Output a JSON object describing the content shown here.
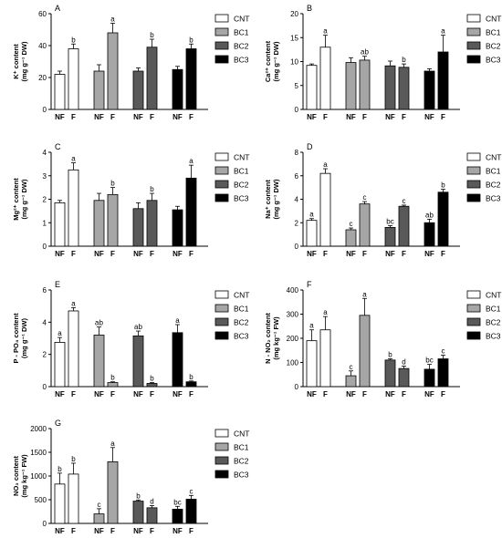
{
  "legend": {
    "colors": {
      "CNT": "#ffffff",
      "BC1": "#a6a6a6",
      "BC2": "#595959",
      "BC3": "#000000"
    }
  },
  "chart_data": [
    {
      "type": "bar",
      "panel_label": "A",
      "ylabel_lines": [
        "K⁺ content",
        "(mg g⁻¹ DW)"
      ],
      "ylim": [
        0,
        60
      ],
      "yticks": [
        0,
        20,
        40,
        60
      ],
      "groups": [
        "CNT",
        "BC1",
        "BC2",
        "BC3"
      ],
      "categories": [
        "NF",
        "F"
      ],
      "legend_labels": [
        "CNT",
        "BC1",
        "BC2",
        "BC3"
      ],
      "series": [
        {
          "group": "CNT",
          "values": [
            22,
            38
          ],
          "errors": [
            2,
            3
          ],
          "letters": [
            "",
            "b"
          ]
        },
        {
          "group": "BC1",
          "values": [
            24,
            48
          ],
          "errors": [
            4,
            6
          ],
          "letters": [
            "",
            "a"
          ]
        },
        {
          "group": "BC2",
          "values": [
            24,
            39
          ],
          "errors": [
            2,
            5
          ],
          "letters": [
            "",
            "b"
          ]
        },
        {
          "group": "BC3",
          "values": [
            25,
            38
          ],
          "errors": [
            2,
            3
          ],
          "letters": [
            "",
            "b"
          ]
        }
      ]
    },
    {
      "type": "bar",
      "panel_label": "B",
      "ylabel_lines": [
        "Ca²⁺ content",
        "(mg g⁻¹ DW)"
      ],
      "ylim": [
        0,
        20
      ],
      "yticks": [
        0,
        5,
        10,
        15,
        20
      ],
      "groups": [
        "CNT",
        "BC1",
        "BC2",
        "BC3"
      ],
      "categories": [
        "NF",
        "F"
      ],
      "legend_labels": [
        "CNT",
        "BC1",
        "BC2",
        "BC3"
      ],
      "series": [
        {
          "group": "CNT",
          "values": [
            9.2,
            13
          ],
          "errors": [
            0.3,
            2.5
          ],
          "letters": [
            "",
            "a"
          ]
        },
        {
          "group": "BC1",
          "values": [
            9.8,
            10.3
          ],
          "errors": [
            1,
            0.8
          ],
          "letters": [
            "",
            "ab"
          ]
        },
        {
          "group": "BC2",
          "values": [
            9.1,
            8.8
          ],
          "errors": [
            1,
            0.7
          ],
          "letters": [
            "",
            "b"
          ]
        },
        {
          "group": "BC3",
          "values": [
            8,
            12
          ],
          "errors": [
            0.5,
            3.5
          ],
          "letters": [
            "",
            "a"
          ]
        }
      ]
    },
    {
      "type": "bar",
      "panel_label": "C",
      "ylabel_lines": [
        "Mg²⁺ content",
        "(mg g⁻¹ DW)"
      ],
      "ylim": [
        0,
        4
      ],
      "yticks": [
        0,
        1,
        2,
        3,
        4
      ],
      "groups": [
        "CNT",
        "BC1",
        "BC2",
        "BC3"
      ],
      "categories": [
        "NF",
        "F"
      ],
      "legend_labels": [
        "CNT",
        "BC1",
        "BC2",
        "BC3"
      ],
      "series": [
        {
          "group": "CNT",
          "values": [
            1.85,
            3.25
          ],
          "errors": [
            0.1,
            0.3
          ],
          "letters": [
            "",
            "a"
          ]
        },
        {
          "group": "BC1",
          "values": [
            1.95,
            2.2
          ],
          "errors": [
            0.3,
            0.3
          ],
          "letters": [
            "",
            "b"
          ]
        },
        {
          "group": "BC2",
          "values": [
            1.6,
            1.95
          ],
          "errors": [
            0.25,
            0.3
          ],
          "letters": [
            "",
            "b"
          ]
        },
        {
          "group": "BC3",
          "values": [
            1.55,
            2.9
          ],
          "errors": [
            0.15,
            0.55
          ],
          "letters": [
            "",
            "a"
          ]
        }
      ]
    },
    {
      "type": "bar",
      "panel_label": "D",
      "ylabel_lines": [
        "Na⁺ content",
        "(mg g⁻¹ DW)"
      ],
      "ylim": [
        0,
        8
      ],
      "yticks": [
        0,
        2,
        4,
        6,
        8
      ],
      "groups": [
        "CNT",
        "BC1",
        "BC2",
        "BC3"
      ],
      "categories": [
        "NF",
        "F"
      ],
      "legend_labels": [
        "CNT",
        "BC1",
        "BC2",
        "BC3"
      ],
      "series": [
        {
          "group": "CNT",
          "values": [
            2.2,
            6.2
          ],
          "errors": [
            0.15,
            0.4
          ],
          "letters": [
            "a",
            "a"
          ]
        },
        {
          "group": "BC1",
          "values": [
            1.4,
            3.6
          ],
          "errors": [
            0.15,
            0.2
          ],
          "letters": [
            "c",
            "c"
          ]
        },
        {
          "group": "BC2",
          "values": [
            1.6,
            3.4
          ],
          "errors": [
            0.15,
            0.1
          ],
          "letters": [
            "bc",
            "c"
          ]
        },
        {
          "group": "BC3",
          "values": [
            2.0,
            4.6
          ],
          "errors": [
            0.3,
            0.25
          ],
          "letters": [
            "ab",
            "b"
          ]
        }
      ]
    },
    {
      "type": "bar",
      "panel_label": "E",
      "ylabel_lines": [
        "P - PO₄ content",
        "(mg g⁻¹ DW)"
      ],
      "ylim": [
        0,
        6
      ],
      "yticks": [
        0,
        2,
        4,
        6
      ],
      "groups": [
        "CNT",
        "BC1",
        "BC2",
        "BC3"
      ],
      "categories": [
        "NF",
        "F"
      ],
      "legend_labels": [
        "CNT",
        "BC1",
        "BC2",
        "BC3"
      ],
      "series": [
        {
          "group": "CNT",
          "values": [
            2.75,
            4.7
          ],
          "errors": [
            0.3,
            0.2
          ],
          "letters": [
            "a",
            "a"
          ]
        },
        {
          "group": "BC1",
          "values": [
            3.2,
            0.25
          ],
          "errors": [
            0.5,
            0.05
          ],
          "letters": [
            "ab",
            "b"
          ]
        },
        {
          "group": "BC2",
          "values": [
            3.15,
            0.2
          ],
          "errors": [
            0.3,
            0.05
          ],
          "letters": [
            "ab",
            "b"
          ]
        },
        {
          "group": "BC3",
          "values": [
            3.35,
            0.3
          ],
          "errors": [
            0.5,
            0.05
          ],
          "letters": [
            "a",
            "b"
          ]
        }
      ]
    },
    {
      "type": "bar",
      "panel_label": "F",
      "ylabel_lines": [
        "N - NO₂ content",
        "(mg kg⁻¹ FW)"
      ],
      "ylim": [
        0,
        400
      ],
      "yticks": [
        0,
        100,
        200,
        300,
        400
      ],
      "groups": [
        "CNT",
        "BC1",
        "BC2",
        "BC3"
      ],
      "categories": [
        "NF",
        "F"
      ],
      "legend_labels": [
        "CNT",
        "BC1",
        "BC2",
        "BC3"
      ],
      "series": [
        {
          "group": "CNT",
          "values": [
            190,
            235
          ],
          "errors": [
            45,
            55
          ],
          "letters": [
            "a",
            "a"
          ]
        },
        {
          "group": "BC1",
          "values": [
            45,
            295
          ],
          "errors": [
            20,
            70
          ],
          "letters": [
            "c",
            "a"
          ]
        },
        {
          "group": "BC2",
          "values": [
            110,
            75
          ],
          "errors": [
            5,
            10
          ],
          "letters": [
            "b",
            "d"
          ]
        },
        {
          "group": "BC3",
          "values": [
            72,
            115
          ],
          "errors": [
            20,
            15
          ],
          "letters": [
            "bc",
            "c"
          ]
        }
      ]
    },
    {
      "type": "bar",
      "panel_label": "G",
      "ylabel_lines": [
        "NO₃ content",
        "(mg kg⁻¹ FW)"
      ],
      "ylim": [
        0,
        2000
      ],
      "yticks": [
        0,
        500,
        1000,
        1500,
        2000
      ],
      "groups": [
        "CNT",
        "BC1",
        "BC2",
        "BC3"
      ],
      "categories": [
        "NF",
        "F"
      ],
      "legend_labels": [
        "CNT",
        "BC1",
        "BC2",
        "BC3"
      ],
      "series": [
        {
          "group": "CNT",
          "values": [
            830,
            1040
          ],
          "errors": [
            230,
            230
          ],
          "letters": [
            "b",
            "b"
          ]
        },
        {
          "group": "BC1",
          "values": [
            200,
            1300
          ],
          "errors": [
            110,
            300
          ],
          "letters": [
            "c",
            "a"
          ]
        },
        {
          "group": "BC2",
          "values": [
            470,
            330
          ],
          "errors": [
            25,
            45
          ],
          "letters": [
            "b",
            "d"
          ]
        },
        {
          "group": "BC3",
          "values": [
            300,
            510
          ],
          "errors": [
            60,
            80
          ],
          "letters": [
            "bc",
            "c"
          ]
        }
      ]
    }
  ]
}
